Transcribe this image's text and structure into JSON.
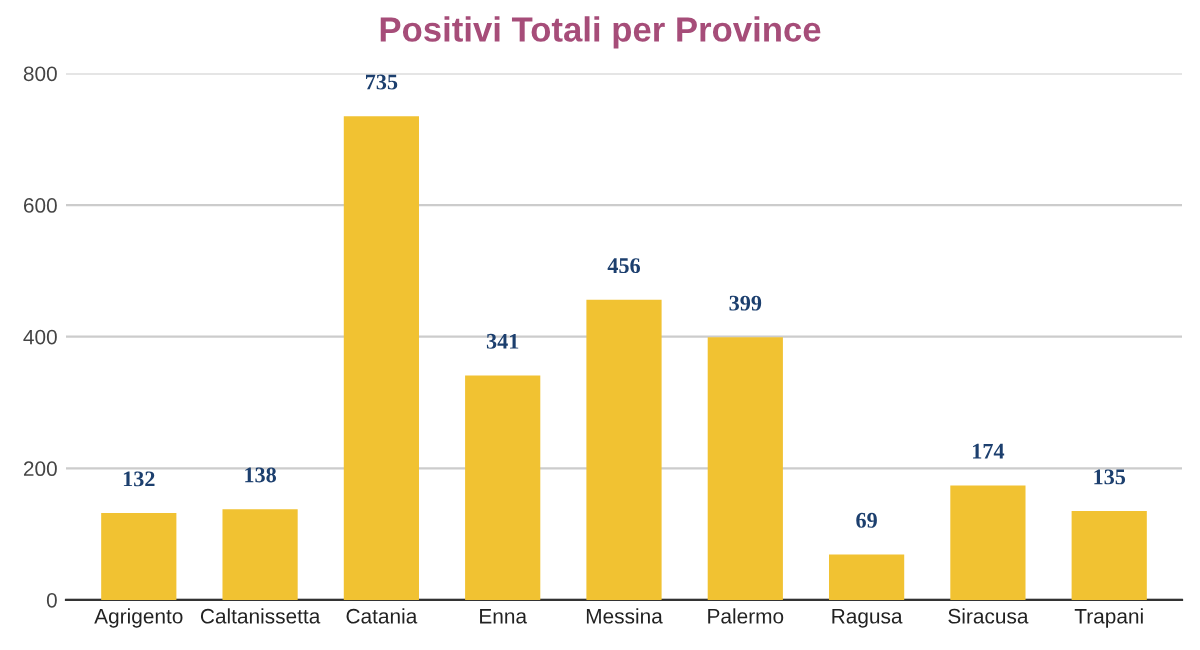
{
  "chart_data": {
    "type": "bar",
    "title": "Positivi Totali per Province",
    "categories": [
      "Agrigento",
      "Caltanissetta",
      "Catania",
      "Enna",
      "Messina",
      "Palermo",
      "Ragusa",
      "Siracusa",
      "Trapani"
    ],
    "values": [
      132,
      138,
      735,
      341,
      456,
      399,
      69,
      174,
      135
    ],
    "color": "#f1c232",
    "ylim": [
      0,
      800
    ],
    "yticks": [
      0,
      200,
      400,
      600,
      800
    ],
    "grid": "y",
    "data_labels": true
  }
}
